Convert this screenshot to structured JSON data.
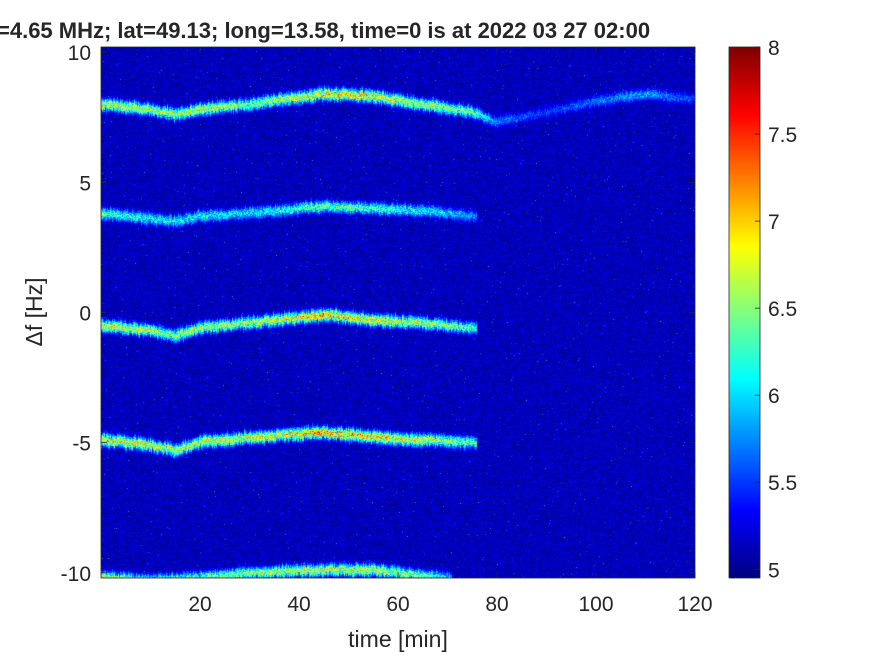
{
  "chart_data": {
    "type": "heatmap",
    "title": "=4.65 MHz;  lat=49.13; long=13.58, time=0 is at 2022 03 27 02:00",
    "xlabel": "time [min]",
    "ylabel": "Δf [Hz]",
    "xlim": [
      0,
      120
    ],
    "ylim": [
      -10.2,
      10.2
    ],
    "x_ticks": [
      20,
      40,
      60,
      80,
      100,
      120
    ],
    "y_ticks": [
      10,
      5,
      0,
      -5,
      -10
    ],
    "colorbar": {
      "range": [
        4.95,
        8.0
      ],
      "ticks": [
        8,
        7.5,
        7,
        6.5,
        6,
        5.5,
        5
      ],
      "colormap": "jet"
    },
    "series": [
      {
        "x": [
          0,
          10,
          15,
          20,
          30,
          45,
          55,
          65,
          75,
          80,
          90,
          100,
          110,
          120
        ],
        "y": [
          8.0,
          7.8,
          7.6,
          7.8,
          8.0,
          8.4,
          8.3,
          8.0,
          7.7,
          7.3,
          7.7,
          8.1,
          8.4,
          8.2
        ],
        "intensity": [
          7.0,
          6.8,
          6.9,
          6.9,
          6.7,
          7.2,
          7.1,
          6.9,
          6.6,
          5.8,
          5.6,
          5.8,
          6.0,
          5.6
        ]
      },
      {
        "x": [
          0,
          10,
          15,
          20,
          30,
          45,
          55,
          65,
          75
        ],
        "y": [
          3.8,
          3.6,
          3.5,
          3.7,
          3.8,
          4.1,
          4.0,
          3.9,
          3.7
        ],
        "intensity": [
          6.5,
          6.3,
          6.3,
          6.3,
          6.2,
          6.6,
          6.5,
          6.3,
          5.9
        ]
      },
      {
        "x": [
          0,
          10,
          15,
          20,
          30,
          45,
          55,
          65,
          75
        ],
        "y": [
          -0.5,
          -0.7,
          -0.9,
          -0.6,
          -0.4,
          -0.1,
          -0.3,
          -0.4,
          -0.6
        ],
        "intensity": [
          7.0,
          6.9,
          6.7,
          6.9,
          6.8,
          7.3,
          7.1,
          6.9,
          6.5
        ]
      },
      {
        "x": [
          0,
          10,
          15,
          20,
          30,
          45,
          55,
          65,
          75
        ],
        "y": [
          -4.9,
          -5.1,
          -5.3,
          -5.0,
          -4.8,
          -4.6,
          -4.8,
          -4.9,
          -5.0
        ],
        "intensity": [
          7.2,
          7.0,
          6.9,
          7.0,
          7.0,
          7.4,
          7.2,
          7.0,
          6.5
        ]
      },
      {
        "x": [
          0,
          10,
          20,
          30,
          45,
          55,
          65,
          70
        ],
        "y": [
          -10.2,
          -10.3,
          -10.2,
          -10.0,
          -9.9,
          -9.9,
          -10.1,
          -10.2
        ],
        "intensity": [
          6.9,
          6.6,
          6.6,
          6.8,
          7.0,
          7.0,
          6.6,
          6.2
        ]
      }
    ]
  }
}
